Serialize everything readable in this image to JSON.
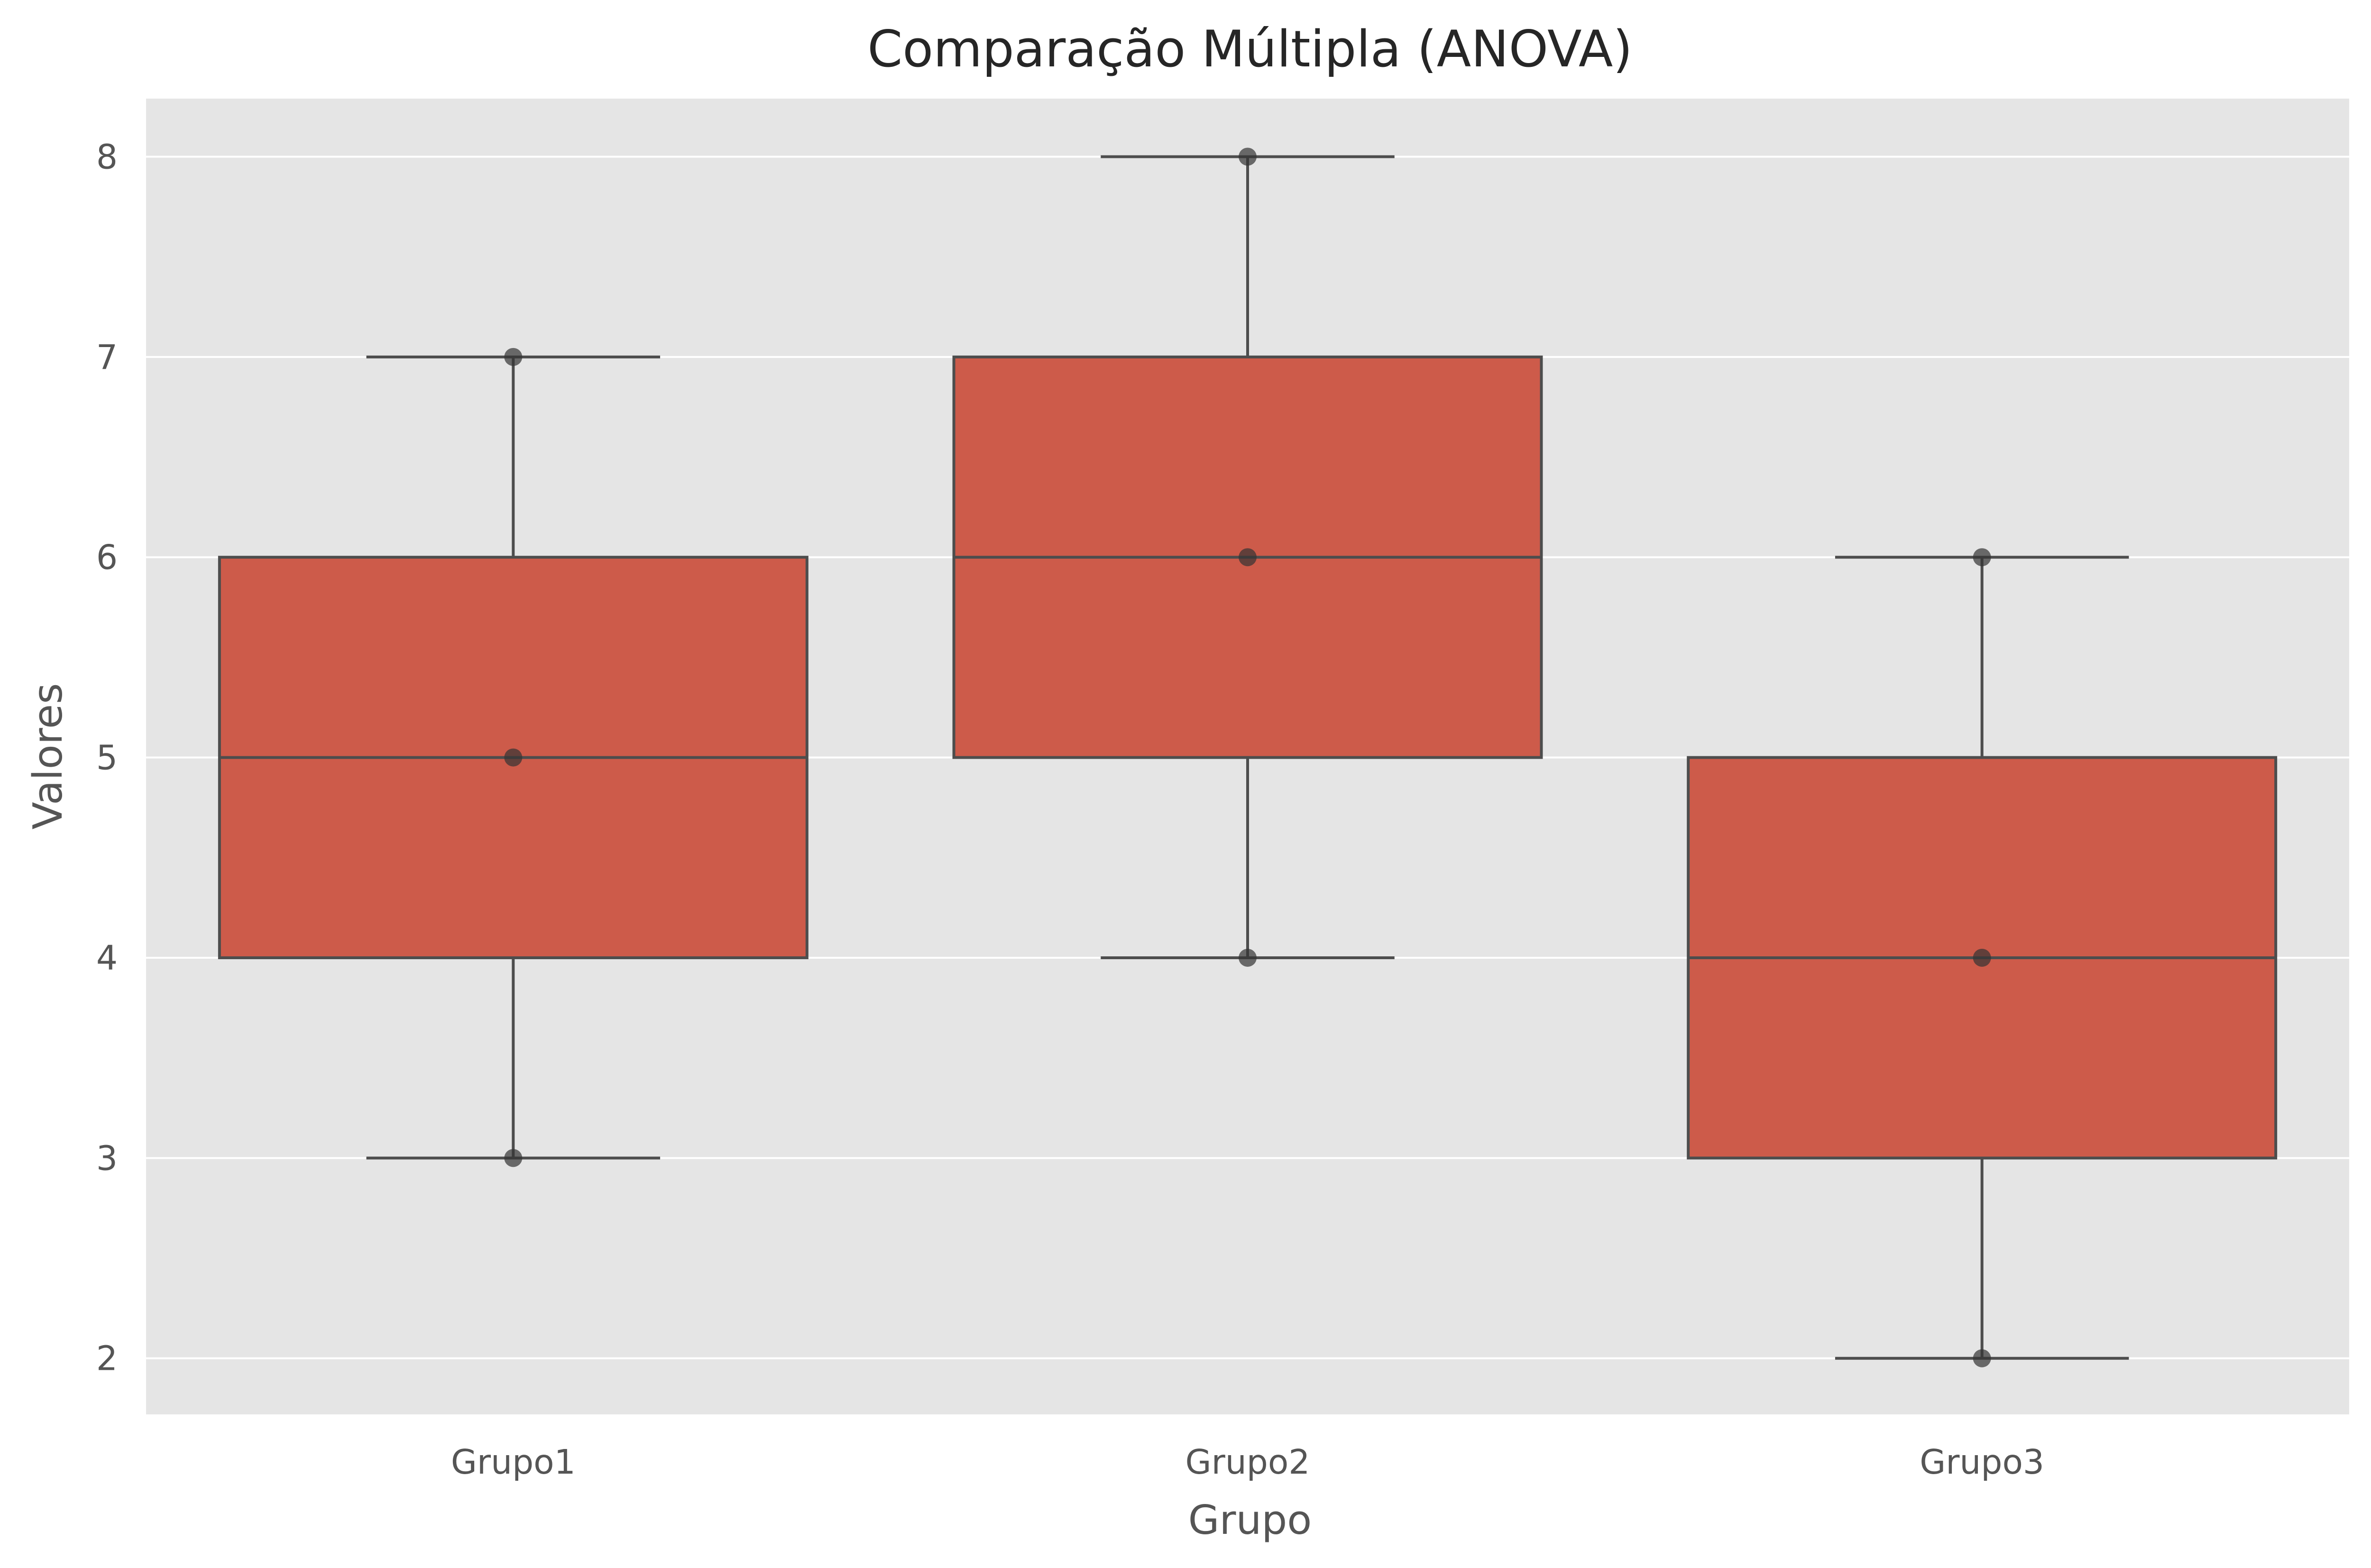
{
  "chart_data": {
    "type": "box",
    "title": "Comparação Múltipla (ANOVA)",
    "xlabel": "Grupo",
    "ylabel": "Valores",
    "categories": [
      "Grupo1",
      "Grupo2",
      "Grupo3"
    ],
    "ylim": [
      1.72,
      8.29
    ],
    "yticks": [
      2,
      3,
      4,
      5,
      6,
      7,
      8
    ],
    "ytick_labels": [
      "2",
      "3",
      "4",
      "5",
      "6",
      "7",
      "8"
    ],
    "grid": true,
    "boxes": [
      {
        "category": "Grupo1",
        "whisker_low": 3,
        "q1": 4,
        "median": 5,
        "q3": 6,
        "whisker_high": 7
      },
      {
        "category": "Grupo2",
        "whisker_low": 4,
        "q1": 5,
        "median": 6,
        "q3": 7,
        "whisker_high": 8
      },
      {
        "category": "Grupo3",
        "whisker_low": 2,
        "q1": 3,
        "median": 4,
        "q3": 5,
        "whisker_high": 6
      }
    ],
    "points": [
      {
        "category": "Grupo1",
        "values": [
          3,
          5,
          7
        ]
      },
      {
        "category": "Grupo2",
        "values": [
          4,
          6,
          8
        ]
      },
      {
        "category": "Grupo3",
        "values": [
          2,
          4,
          6
        ]
      }
    ],
    "colors": {
      "box_fill": "#cd5b4a",
      "box_edge": "#4d4d4d",
      "plot_background": "#e5e5e5",
      "grid": "#ffffff",
      "points": "#333333"
    }
  }
}
